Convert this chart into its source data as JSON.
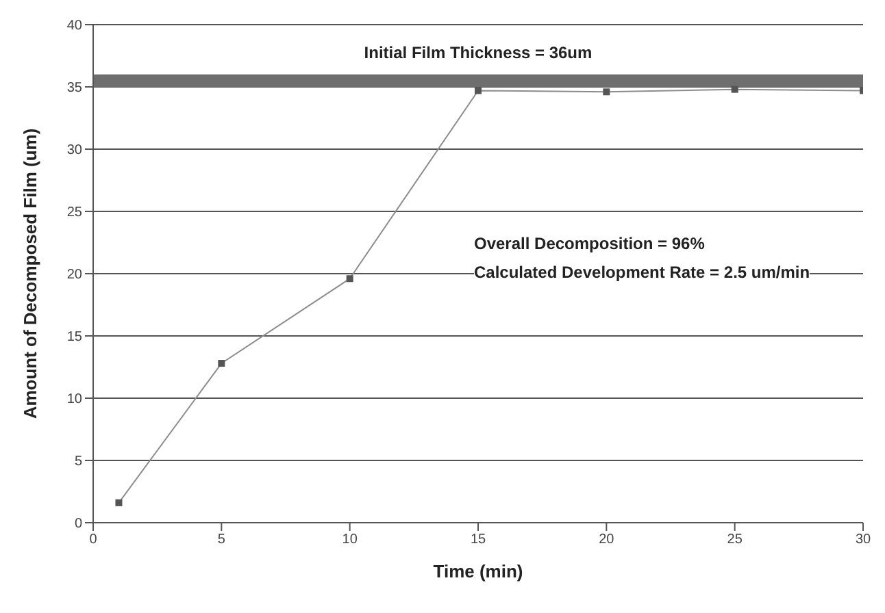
{
  "chart_data": {
    "type": "line",
    "xlabel": "Time (min)",
    "ylabel": "Amount of Decomposed Film (um)",
    "x": [
      1,
      5,
      10,
      15,
      20,
      25,
      30
    ],
    "series": [
      {
        "color": "#8c8c8c",
        "values": [
          1.6,
          12.8,
          19.6,
          34.7,
          34.6,
          34.8,
          34.7
        ]
      }
    ],
    "xlim": [
      0,
      30
    ],
    "xticks": [
      0,
      5,
      10,
      15,
      20,
      25,
      30
    ],
    "ylim": [
      0,
      40
    ],
    "yticks": [
      0,
      5,
      10,
      15,
      20,
      25,
      30,
      35,
      40
    ],
    "grid": "y",
    "marker": "square",
    "line_style": "solid",
    "bands": [
      {
        "axis": "y",
        "from": 35,
        "to": 36,
        "label": "Initial Film Thickness = 36um",
        "color": "#6e6e6e"
      }
    ],
    "annotations": [
      "Overall Decomposition = 96%",
      "Calculated Development Rate = 2.5 um/min"
    ]
  }
}
